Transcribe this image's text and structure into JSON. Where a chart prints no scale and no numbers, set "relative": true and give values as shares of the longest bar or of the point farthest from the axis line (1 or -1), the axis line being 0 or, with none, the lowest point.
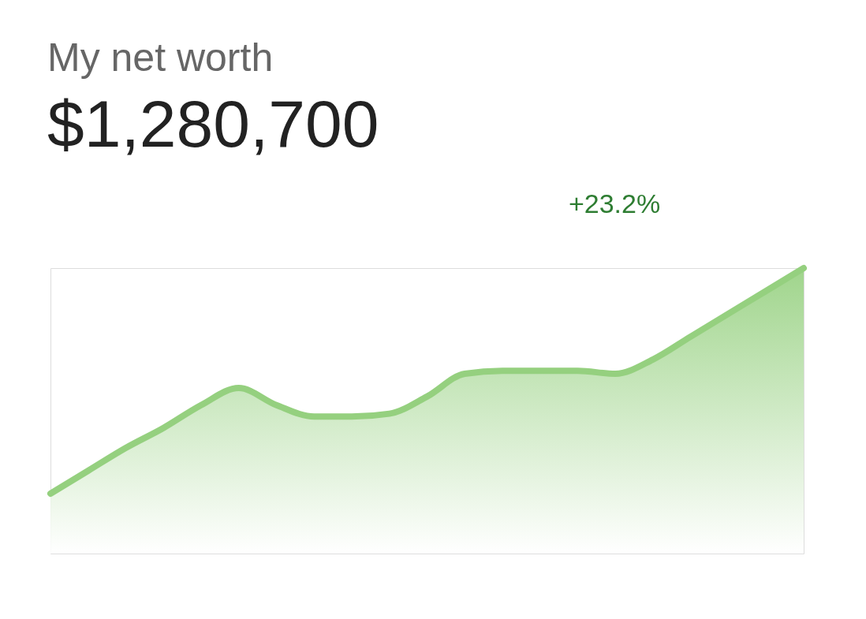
{
  "chart_data": {
    "type": "area",
    "title": "My net worth",
    "subtitle": "$1,280,700",
    "annotations": [
      "+23.2%"
    ],
    "relative": true,
    "categories": [
      null,
      null,
      null,
      null,
      null,
      null,
      null,
      null,
      null,
      null,
      null,
      null,
      null,
      null,
      null,
      null,
      null,
      null,
      null,
      null,
      null
    ],
    "series": [
      {
        "color": "#95d07f",
        "values": [
          0.21,
          0.29,
          0.37,
          0.44,
          0.52,
          0.58,
          0.52,
          0.48,
          0.48,
          0.49,
          0.55,
          0.63,
          0.64,
          0.64,
          0.64,
          0.63,
          0.68,
          0.76,
          0.84,
          0.92,
          1.0
        ]
      }
    ]
  }
}
